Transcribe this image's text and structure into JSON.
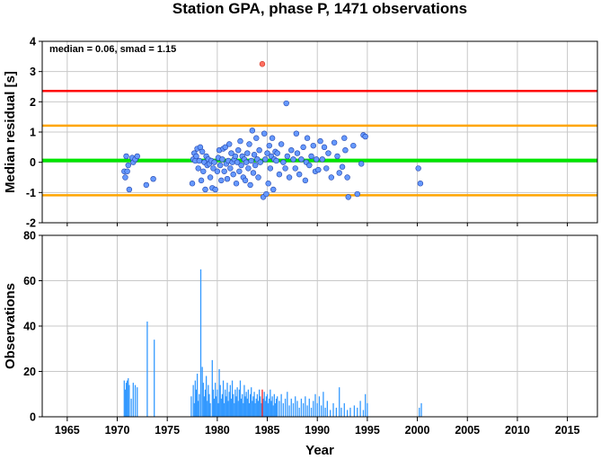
{
  "title": "Station GPA, phase P, 1471 observations",
  "colors": {
    "threshold_red": "#ff0000",
    "threshold_orange": "#ffa500",
    "median_green": "#00e600",
    "points_fill": "#6699ff",
    "points_stroke": "#2244aa",
    "outlier_fill": "#ff6f61",
    "bars": "#3399ff",
    "bar_highlight": "#ff2020",
    "grid": "#c8c8c8"
  },
  "chart_data": [
    {
      "type": "scatter",
      "title": "Station GPA, phase P, 1471 observations",
      "ylabel": "Median residual [s]",
      "xlabel": "",
      "xlim": [
        1962.5,
        2018
      ],
      "ylim": [
        -2,
        4
      ],
      "x_ticks": [
        1965,
        1970,
        1975,
        1980,
        1985,
        1990,
        1995,
        2000,
        2005,
        2010,
        2015
      ],
      "y_ticks": [
        -2,
        -1,
        0,
        1,
        2,
        3,
        4
      ],
      "grid": true,
      "annotation": "median = 0.06, smad = 1.15",
      "reference_lines": [
        {
          "y": 2.36,
          "color": "#ff0000"
        },
        {
          "y": 1.21,
          "color": "#ffa500"
        },
        {
          "y": 0.06,
          "color": "#00e600"
        },
        {
          "y": -1.09,
          "color": "#ffa500"
        }
      ],
      "points": [
        [
          1970.7,
          -0.3
        ],
        [
          1970.8,
          -0.5
        ],
        [
          1970.9,
          0.2
        ],
        [
          1971.0,
          -0.3
        ],
        [
          1971.1,
          -0.1
        ],
        [
          1971.2,
          -0.9
        ],
        [
          1971.5,
          0.15
        ],
        [
          1971.6,
          0.0
        ],
        [
          1971.8,
          0.1
        ],
        [
          1972.0,
          0.2
        ],
        [
          1972.9,
          -0.75
        ],
        [
          1973.6,
          -0.55
        ],
        [
          1977.5,
          -0.7
        ],
        [
          1977.6,
          0.1
        ],
        [
          1977.7,
          0.3
        ],
        [
          1977.8,
          0.05
        ],
        [
          1977.9,
          0.2
        ],
        [
          1978.0,
          0.45
        ],
        [
          1978.1,
          -0.2
        ],
        [
          1978.2,
          0.05
        ],
        [
          1978.3,
          0.5
        ],
        [
          1978.4,
          -0.6
        ],
        [
          1978.5,
          0.35
        ],
        [
          1978.6,
          -0.3
        ],
        [
          1978.7,
          0.0
        ],
        [
          1978.8,
          -0.9
        ],
        [
          1978.9,
          0.2
        ],
        [
          1979.0,
          -0.1
        ],
        [
          1979.1,
          0.1
        ],
        [
          1979.2,
          -0.05
        ],
        [
          1979.3,
          -0.5
        ],
        [
          1979.4,
          0.05
        ],
        [
          1979.5,
          -0.85
        ],
        [
          1979.6,
          -0.2
        ],
        [
          1979.7,
          0.0
        ],
        [
          1979.8,
          -0.9
        ],
        [
          1980.0,
          -0.3
        ],
        [
          1980.1,
          0.15
        ],
        [
          1980.2,
          0.4
        ],
        [
          1980.3,
          -0.1
        ],
        [
          1980.4,
          -0.6
        ],
        [
          1980.5,
          0.1
        ],
        [
          1980.6,
          0.45
        ],
        [
          1980.7,
          -0.3
        ],
        [
          1980.8,
          0.5
        ],
        [
          1980.9,
          -0.05
        ],
        [
          1981.0,
          -0.55
        ],
        [
          1981.1,
          0.05
        ],
        [
          1981.2,
          0.6
        ],
        [
          1981.3,
          -0.2
        ],
        [
          1981.4,
          0.3
        ],
        [
          1981.5,
          0.0
        ],
        [
          1981.6,
          -0.4
        ],
        [
          1981.7,
          0.1
        ],
        [
          1981.8,
          0.2
        ],
        [
          1981.9,
          -0.7
        ],
        [
          1982.0,
          0.0
        ],
        [
          1982.1,
          0.4
        ],
        [
          1982.2,
          -0.3
        ],
        [
          1982.3,
          0.7
        ],
        [
          1982.4,
          -0.1
        ],
        [
          1982.5,
          0.2
        ],
        [
          1982.6,
          -0.5
        ],
        [
          1982.7,
          0.1
        ],
        [
          1982.8,
          -0.6
        ],
        [
          1982.9,
          0.0
        ],
        [
          1983.0,
          0.3
        ],
        [
          1983.1,
          -0.2
        ],
        [
          1983.2,
          0.6
        ],
        [
          1983.3,
          -0.75
        ],
        [
          1983.4,
          0.05
        ],
        [
          1983.5,
          1.05
        ],
        [
          1983.6,
          -0.35
        ],
        [
          1983.7,
          0.25
        ],
        [
          1983.8,
          -0.1
        ],
        [
          1983.9,
          0.8
        ],
        [
          1984.0,
          0.1
        ],
        [
          1984.1,
          -0.5
        ],
        [
          1984.2,
          0.4
        ],
        [
          1984.3,
          0.0
        ],
        [
          1984.5,
          3.25
        ],
        [
          1984.6,
          -1.15
        ],
        [
          1984.7,
          0.95
        ],
        [
          1984.8,
          0.1
        ],
        [
          1984.9,
          -1.05
        ],
        [
          1985.0,
          0.3
        ],
        [
          1985.1,
          -0.7
        ],
        [
          1985.2,
          0.55
        ],
        [
          1985.3,
          -0.2
        ],
        [
          1985.4,
          0.2
        ],
        [
          1985.5,
          0.8
        ],
        [
          1985.6,
          -0.9
        ],
        [
          1985.7,
          0.1
        ],
        [
          1985.8,
          0.35
        ],
        [
          1985.9,
          0.05
        ],
        [
          1986.0,
          0.3
        ],
        [
          1986.2,
          -0.4
        ],
        [
          1986.4,
          0.6
        ],
        [
          1986.6,
          0.0
        ],
        [
          1986.8,
          -0.2
        ],
        [
          1986.9,
          1.95
        ],
        [
          1987.0,
          0.2
        ],
        [
          1987.2,
          -0.5
        ],
        [
          1987.4,
          0.4
        ],
        [
          1987.6,
          0.1
        ],
        [
          1987.8,
          -0.2
        ],
        [
          1987.9,
          0.95
        ],
        [
          1988.0,
          0.3
        ],
        [
          1988.2,
          -0.4
        ],
        [
          1988.4,
          0.1
        ],
        [
          1988.6,
          0.5
        ],
        [
          1988.8,
          -0.6
        ],
        [
          1988.9,
          0.0
        ],
        [
          1989.0,
          0.8
        ],
        [
          1989.2,
          -0.1
        ],
        [
          1989.4,
          0.2
        ],
        [
          1989.6,
          0.55
        ],
        [
          1989.8,
          -0.3
        ],
        [
          1989.9,
          0.1
        ],
        [
          1990.1,
          -0.25
        ],
        [
          1990.3,
          0.7
        ],
        [
          1990.5,
          0.1
        ],
        [
          1990.7,
          0.5
        ],
        [
          1990.9,
          -0.2
        ],
        [
          1991.1,
          0.3
        ],
        [
          1991.4,
          -0.5
        ],
        [
          1991.7,
          0.65
        ],
        [
          1992.0,
          0.2
        ],
        [
          1992.2,
          -0.35
        ],
        [
          1992.5,
          -0.15
        ],
        [
          1992.7,
          0.8
        ],
        [
          1992.8,
          0.4
        ],
        [
          1993.0,
          -0.5
        ],
        [
          1993.1,
          -1.15
        ],
        [
          1993.6,
          0.55
        ],
        [
          1994.0,
          -1.05
        ],
        [
          1994.4,
          -0.05
        ],
        [
          1994.6,
          0.9
        ],
        [
          1994.8,
          0.85
        ],
        [
          2000.1,
          -0.2
        ],
        [
          2000.3,
          -0.7
        ]
      ],
      "outliers": [
        [
          1984.5,
          3.25
        ]
      ]
    },
    {
      "type": "bar",
      "xlabel": "Year",
      "ylabel": "Observations",
      "xlim": [
        1962.5,
        2018
      ],
      "ylim": [
        0,
        80
      ],
      "x_ticks": [
        1965,
        1970,
        1975,
        1980,
        1985,
        1990,
        1995,
        2000,
        2005,
        2010,
        2015
      ],
      "y_ticks": [
        0,
        20,
        40,
        60,
        80
      ],
      "grid": true,
      "bars": [
        [
          1970.7,
          16
        ],
        [
          1970.8,
          12
        ],
        [
          1970.9,
          15
        ],
        [
          1971.0,
          16
        ],
        [
          1971.1,
          17
        ],
        [
          1971.2,
          14
        ],
        [
          1971.4,
          8
        ],
        [
          1971.6,
          15
        ],
        [
          1971.8,
          14
        ],
        [
          1972.0,
          13
        ],
        [
          1973.0,
          42
        ],
        [
          1973.7,
          34
        ],
        [
          1977.4,
          9
        ],
        [
          1977.6,
          14
        ],
        [
          1977.7,
          6
        ],
        [
          1977.8,
          16
        ],
        [
          1977.9,
          12
        ],
        [
          1978.0,
          19
        ],
        [
          1978.1,
          7
        ],
        [
          1978.2,
          10
        ],
        [
          1978.35,
          65
        ],
        [
          1978.5,
          22
        ],
        [
          1978.6,
          15
        ],
        [
          1978.7,
          9
        ],
        [
          1978.8,
          12
        ],
        [
          1978.9,
          18
        ],
        [
          1979.0,
          7
        ],
        [
          1979.1,
          14
        ],
        [
          1979.2,
          10
        ],
        [
          1979.3,
          6
        ],
        [
          1979.5,
          25
        ],
        [
          1979.6,
          12
        ],
        [
          1979.7,
          8
        ],
        [
          1979.8,
          15
        ],
        [
          1979.9,
          9
        ],
        [
          1980.0,
          12
        ],
        [
          1980.1,
          6
        ],
        [
          1980.2,
          21
        ],
        [
          1980.3,
          14
        ],
        [
          1980.4,
          8
        ],
        [
          1980.5,
          10
        ],
        [
          1980.6,
          16
        ],
        [
          1980.7,
          6
        ],
        [
          1980.8,
          12
        ],
        [
          1980.9,
          9
        ],
        [
          1981.0,
          15
        ],
        [
          1981.1,
          7
        ],
        [
          1981.2,
          11
        ],
        [
          1981.3,
          14
        ],
        [
          1981.4,
          8
        ],
        [
          1981.5,
          16
        ],
        [
          1981.6,
          10
        ],
        [
          1981.7,
          6
        ],
        [
          1981.8,
          12
        ],
        [
          1981.9,
          9
        ],
        [
          1982.0,
          13
        ],
        [
          1982.1,
          7
        ],
        [
          1982.2,
          12
        ],
        [
          1982.3,
          16
        ],
        [
          1982.4,
          8
        ],
        [
          1982.5,
          10
        ],
        [
          1982.6,
          6
        ],
        [
          1982.7,
          14
        ],
        [
          1982.8,
          9
        ],
        [
          1982.9,
          11
        ],
        [
          1983.0,
          8
        ],
        [
          1983.1,
          12
        ],
        [
          1983.2,
          6
        ],
        [
          1983.3,
          10
        ],
        [
          1983.4,
          13
        ],
        [
          1983.5,
          7
        ],
        [
          1983.6,
          9
        ],
        [
          1983.7,
          11
        ],
        [
          1983.8,
          6
        ],
        [
          1983.9,
          8
        ],
        [
          1984.0,
          10
        ],
        [
          1984.1,
          7
        ],
        [
          1984.2,
          12
        ],
        [
          1984.3,
          9
        ],
        [
          1984.4,
          6
        ],
        [
          1984.6,
          8
        ],
        [
          1984.7,
          11
        ],
        [
          1984.8,
          7
        ],
        [
          1984.9,
          9
        ],
        [
          1985.0,
          10
        ],
        [
          1985.1,
          6
        ],
        [
          1985.2,
          8
        ],
        [
          1985.3,
          12
        ],
        [
          1985.4,
          7
        ],
        [
          1985.5,
          9
        ],
        [
          1985.6,
          5
        ],
        [
          1985.7,
          10
        ],
        [
          1985.8,
          6
        ],
        [
          1985.9,
          8
        ],
        [
          1986.0,
          9
        ],
        [
          1986.2,
          7
        ],
        [
          1986.4,
          10
        ],
        [
          1986.6,
          6
        ],
        [
          1986.8,
          8
        ],
        [
          1987.0,
          11
        ],
        [
          1987.2,
          5
        ],
        [
          1987.4,
          8
        ],
        [
          1987.6,
          6
        ],
        [
          1987.8,
          9
        ],
        [
          1988.0,
          7
        ],
        [
          1988.2,
          4
        ],
        [
          1988.4,
          8
        ],
        [
          1988.6,
          6
        ],
        [
          1988.8,
          9
        ],
        [
          1989.0,
          5
        ],
        [
          1989.2,
          8
        ],
        [
          1989.4,
          4
        ],
        [
          1989.6,
          7
        ],
        [
          1989.8,
          10
        ],
        [
          1990.0,
          6
        ],
        [
          1990.2,
          9
        ],
        [
          1990.4,
          5
        ],
        [
          1990.6,
          11
        ],
        [
          1990.8,
          4
        ],
        [
          1991.0,
          7
        ],
        [
          1991.3,
          3
        ],
        [
          1991.6,
          6
        ],
        [
          1991.9,
          4
        ],
        [
          1992.2,
          13
        ],
        [
          1992.4,
          4
        ],
        [
          1992.7,
          6
        ],
        [
          1993.0,
          3
        ],
        [
          1993.3,
          4
        ],
        [
          1993.7,
          5
        ],
        [
          1994.0,
          4
        ],
        [
          1994.3,
          7
        ],
        [
          1994.6,
          3
        ],
        [
          1994.8,
          10
        ],
        [
          1995.0,
          6
        ],
        [
          2000.2,
          4
        ],
        [
          2000.4,
          6
        ]
      ],
      "highlight_bars": [
        [
          1984.5,
          12
        ]
      ]
    }
  ]
}
